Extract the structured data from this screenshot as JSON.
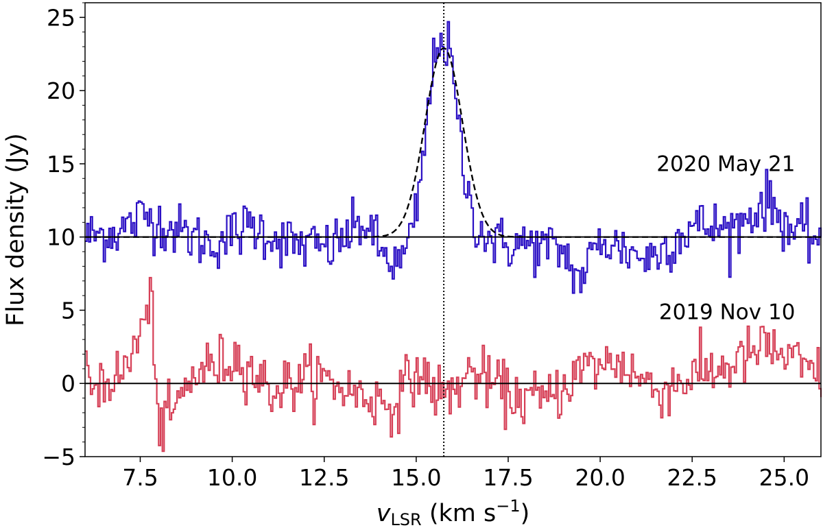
{
  "chart_data": {
    "type": "line",
    "xlabel": {
      "main": "v",
      "sub": "LSR",
      "unit": " (km s",
      "exp": "−1",
      "close": ")"
    },
    "ylabel": "Flux density (Jy)",
    "xlim": [
      6.0,
      26.0
    ],
    "ylim": [
      -5,
      26
    ],
    "xticks": [
      7.5,
      10.0,
      12.5,
      15.0,
      17.5,
      20.0,
      22.5,
      25.0
    ],
    "xtick_labels": [
      "7.5",
      "10.0",
      "12.5",
      "15.0",
      "17.5",
      "20.0",
      "22.5",
      "25.0"
    ],
    "yticks": [
      -5,
      0,
      5,
      10,
      15,
      20,
      25
    ],
    "ytick_labels": [
      "−5",
      "0",
      "5",
      "10",
      "15",
      "20",
      "25"
    ],
    "grid": false,
    "reference_lines": {
      "vertical_dotted_x": 15.75,
      "horizontal_levels": [
        10,
        0
      ]
    },
    "series": [
      {
        "name": "2020 May 21",
        "style": "steps",
        "color": "#2a0fc4",
        "offset": 10,
        "x_start": 6.0,
        "x_end": 26.0,
        "dx": 0.05,
        "noise_rms": 1.25,
        "x": [
          6.0,
          7.0,
          7.6,
          8.5,
          9.4,
          10.5,
          11.5,
          12.6,
          13.6,
          14.0,
          14.5,
          14.8,
          15.0,
          15.2,
          15.4,
          15.6,
          15.75,
          15.9,
          16.1,
          16.3,
          16.5,
          16.8,
          17.2,
          18.0,
          19.0,
          19.4,
          20.0,
          21.3,
          22.5,
          23.6,
          24.5,
          25.3,
          26.0
        ],
        "y": [
          10.0,
          10.5,
          11.5,
          10.4,
          9.5,
          10.8,
          9.6,
          9.2,
          11.0,
          9.0,
          8.0,
          9.5,
          12.0,
          16.0,
          21.0,
          24.0,
          23.0,
          22.5,
          18.0,
          14.0,
          11.5,
          10.3,
          9.5,
          9.5,
          9.0,
          7.0,
          9.8,
          8.5,
          10.8,
          10.5,
          12.5,
          10.2,
          10.0
        ]
      },
      {
        "name": "2019 Nov 10",
        "style": "steps",
        "color": "#d63f56",
        "offset": 0,
        "x_start": 6.0,
        "x_end": 26.0,
        "dx": 0.05,
        "noise_rms": 1.3,
        "x": [
          6.0,
          7.0,
          7.8,
          8.0,
          9.0,
          10.2,
          11.0,
          12.2,
          13.5,
          14.3,
          15.0,
          15.75,
          16.5,
          17.5,
          18.5,
          19.5,
          20.5,
          21.5,
          22.5,
          23.5,
          24.5,
          25.0,
          25.5,
          26.0
        ],
        "y": [
          0.0,
          0.5,
          5.5,
          -3.5,
          0.8,
          1.8,
          -0.5,
          0.5,
          -0.8,
          -1.5,
          0.8,
          -1.0,
          0.8,
          -0.8,
          -1.2,
          1.0,
          1.5,
          -0.5,
          0.5,
          1.2,
          2.5,
          1.8,
          1.0,
          0.5
        ]
      }
    ],
    "fit": {
      "style": "dashed",
      "color": "#000000",
      "baseline": 10,
      "amplitude": 12.9,
      "center": 15.75,
      "fwhm": 1.2
    },
    "annotations": [
      "2020 May 21",
      "2019 Nov 10"
    ]
  }
}
